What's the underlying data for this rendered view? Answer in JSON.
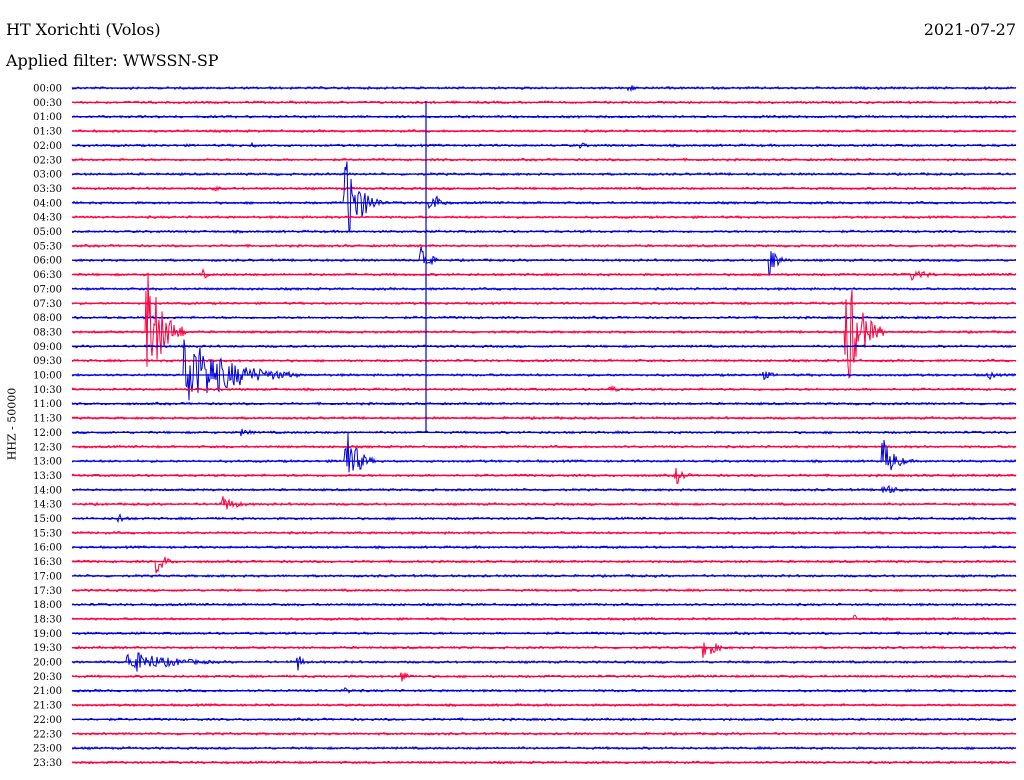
{
  "header": {
    "title": "HT Xorichti (Volos)",
    "date": "2021-07-27",
    "filter": "Applied filter: WWSSN-SP"
  },
  "chart_data": {
    "type": "line",
    "ylabel": "HHZ - 50000",
    "colors": [
      "#0000dd",
      "#ff0040"
    ],
    "rows": [
      "00:00",
      "00:30",
      "01:00",
      "01:30",
      "02:00",
      "02:30",
      "03:00",
      "03:30",
      "04:00",
      "04:30",
      "05:00",
      "05:30",
      "06:00",
      "06:30",
      "07:00",
      "07:30",
      "08:00",
      "08:30",
      "09:00",
      "09:30",
      "10:00",
      "10:30",
      "11:00",
      "11:30",
      "12:00",
      "12:30",
      "13:00",
      "13:30",
      "14:00",
      "14:30",
      "15:00",
      "15:30",
      "16:00",
      "16:30",
      "17:00",
      "17:30",
      "18:00",
      "18:30",
      "19:00",
      "19:30",
      "20:00",
      "20:30",
      "21:00",
      "21:30",
      "22:00",
      "22:30",
      "23:00",
      "23:30"
    ],
    "trace_fraction_start": 0.0,
    "trace_fraction_end": 1.0,
    "events": [
      {
        "row": 0,
        "pos": 0.59,
        "amp": 4,
        "dur": 0.03
      },
      {
        "row": 0,
        "pos": 0.97,
        "amp": 3,
        "dur": 0.01
      },
      {
        "row": 4,
        "pos": 0.19,
        "amp": 3,
        "dur": 0.02
      },
      {
        "row": 4,
        "pos": 0.54,
        "amp": 3,
        "dur": 0.02
      },
      {
        "row": 7,
        "pos": 0.15,
        "amp": 6,
        "dur": 0.01
      },
      {
        "row": 8,
        "pos": 0.29,
        "amp": 45,
        "dur": 0.04
      },
      {
        "row": 8,
        "pos": 0.38,
        "amp": 15,
        "dur": 0.02
      },
      {
        "row": 12,
        "pos": 0.37,
        "amp": 18,
        "dur": 0.02
      },
      {
        "row": 12,
        "pos": 0.74,
        "amp": 16,
        "dur": 0.02
      },
      {
        "row": 13,
        "pos": 0.14,
        "amp": 5,
        "dur": 0.01
      },
      {
        "row": 13,
        "pos": 0.89,
        "amp": 6,
        "dur": 0.05
      },
      {
        "row": 17,
        "pos": 0.08,
        "amp": 65,
        "dur": 0.04
      },
      {
        "row": 17,
        "pos": 0.82,
        "amp": 65,
        "dur": 0.04
      },
      {
        "row": 20,
        "pos": 0.12,
        "amp": 40,
        "dur": 0.12
      },
      {
        "row": 20,
        "pos": 0.73,
        "amp": 6,
        "dur": 0.03
      },
      {
        "row": 20,
        "pos": 0.97,
        "amp": 6,
        "dur": 0.02
      },
      {
        "row": 21,
        "pos": 0.57,
        "amp": 4,
        "dur": 0.03
      },
      {
        "row": 24,
        "pos": 0.18,
        "amp": 4,
        "dur": 0.03
      },
      {
        "row": 26,
        "pos": 0.29,
        "amp": 35,
        "dur": 0.03
      },
      {
        "row": 26,
        "pos": 0.86,
        "amp": 22,
        "dur": 0.03
      },
      {
        "row": 27,
        "pos": 0.64,
        "amp": 10,
        "dur": 0.02
      },
      {
        "row": 28,
        "pos": 0.86,
        "amp": 6,
        "dur": 0.04
      },
      {
        "row": 29,
        "pos": 0.16,
        "amp": 8,
        "dur": 0.04
      },
      {
        "row": 30,
        "pos": 0.05,
        "amp": 6,
        "dur": 0.02
      },
      {
        "row": 33,
        "pos": 0.09,
        "amp": 14,
        "dur": 0.02
      },
      {
        "row": 37,
        "pos": 0.83,
        "amp": 4,
        "dur": 0.02
      },
      {
        "row": 39,
        "pos": 0.67,
        "amp": 12,
        "dur": 0.03
      },
      {
        "row": 40,
        "pos": 0.06,
        "amp": 12,
        "dur": 0.12
      },
      {
        "row": 40,
        "pos": 0.24,
        "amp": 10,
        "dur": 0.01
      },
      {
        "row": 41,
        "pos": 0.35,
        "amp": 6,
        "dur": 0.02
      },
      {
        "row": 42,
        "pos": 0.29,
        "amp": 4,
        "dur": 0.02
      }
    ],
    "vertical_line": {
      "pos": 0.375,
      "from_row": 0.9,
      "to_row": 24
    }
  }
}
